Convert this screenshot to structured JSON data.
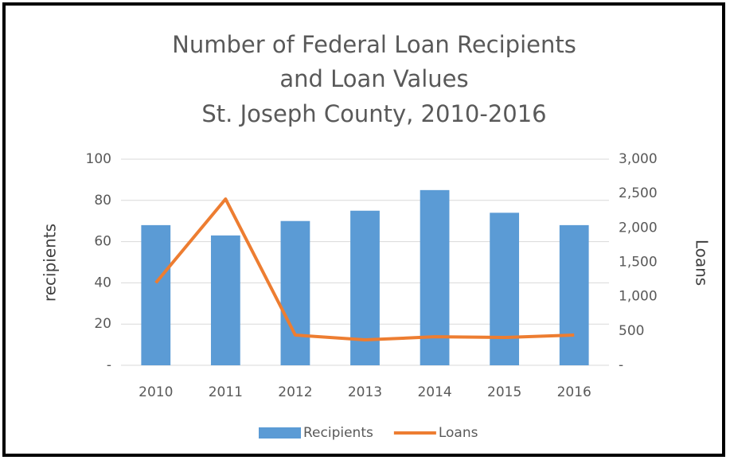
{
  "chart_data": {
    "type": "bar-line",
    "title": [
      "Number of Federal Loan Recipients",
      "and Loan Values",
      "St. Joseph County, 2010-2016"
    ],
    "y_label": "recipients",
    "y2_label": "Loans",
    "categories": [
      "2010",
      "2011",
      "2012",
      "2013",
      "2014",
      "2015",
      "2016"
    ],
    "series": [
      {
        "name": "Recipients",
        "type": "bar",
        "color": "#5b9bd5",
        "values": [
          68,
          63,
          70,
          75,
          85,
          74,
          68
        ]
      },
      {
        "name": "Loans",
        "type": "line",
        "axis": "y2",
        "color": "#ed7d31",
        "values": [
          1200,
          2420,
          440,
          370,
          415,
          405,
          440
        ]
      }
    ],
    "ylim": [
      0,
      100
    ],
    "yticks": [
      {
        "value": 0,
        "label": "-"
      },
      20,
      40,
      60,
      80,
      100
    ],
    "y2lim": [
      0,
      3000
    ],
    "y2ticks": [
      {
        "value": 0,
        "label": "-"
      },
      500,
      {
        "value": 1000,
        "label": "1,000"
      },
      {
        "value": 1500,
        "label": "1,500"
      },
      {
        "value": 2000,
        "label": "2,000"
      },
      {
        "value": 2500,
        "label": "2,500"
      },
      {
        "value": 3000,
        "label": "3,000"
      }
    ],
    "grid": true,
    "legend": "bottom"
  }
}
